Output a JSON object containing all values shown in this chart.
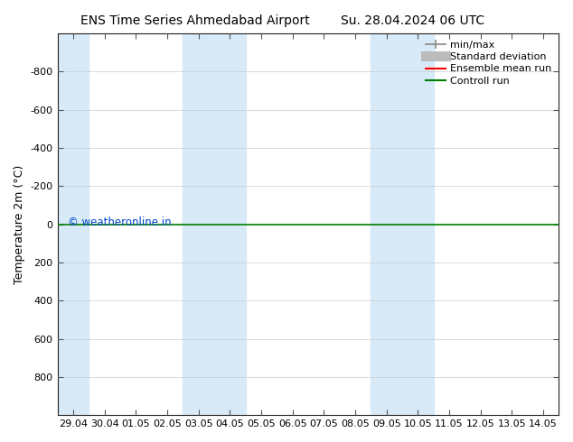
{
  "title_left": "ENS Time Series Ahmedabad Airport",
  "title_right": "Su. 28.04.2024 06 UTC",
  "ylabel": "Temperature 2m (°C)",
  "xlabels": [
    "29.04",
    "30.04",
    "01.05",
    "02.05",
    "03.05",
    "04.05",
    "05.05",
    "06.05",
    "07.05",
    "08.05",
    "09.05",
    "10.05",
    "11.05",
    "12.05",
    "13.05",
    "14.05"
  ],
  "ylim": [
    -1000,
    1000
  ],
  "yticks": [
    -800,
    -600,
    -400,
    -200,
    0,
    200,
    400,
    600,
    800
  ],
  "bg_color": "#ffffff",
  "plot_bg_color": "#ffffff",
  "shade_color": "#d8eaf8",
  "shaded_cols": [
    0,
    4,
    5,
    10,
    11
  ],
  "green_line_y": 0,
  "watermark": "© weatheronline.in",
  "watermark_color": "#0044cc",
  "legend_labels": [
    "min/max",
    "Standard deviation",
    "Ensemble mean run",
    "Controll run"
  ],
  "legend_line_color": "#888888",
  "legend_std_color": "#bbbbbb",
  "legend_mean_color": "#ff0000",
  "legend_ctrl_color": "#008000",
  "title_fontsize": 10,
  "ylabel_fontsize": 9,
  "tick_fontsize": 8,
  "legend_fontsize": 8
}
